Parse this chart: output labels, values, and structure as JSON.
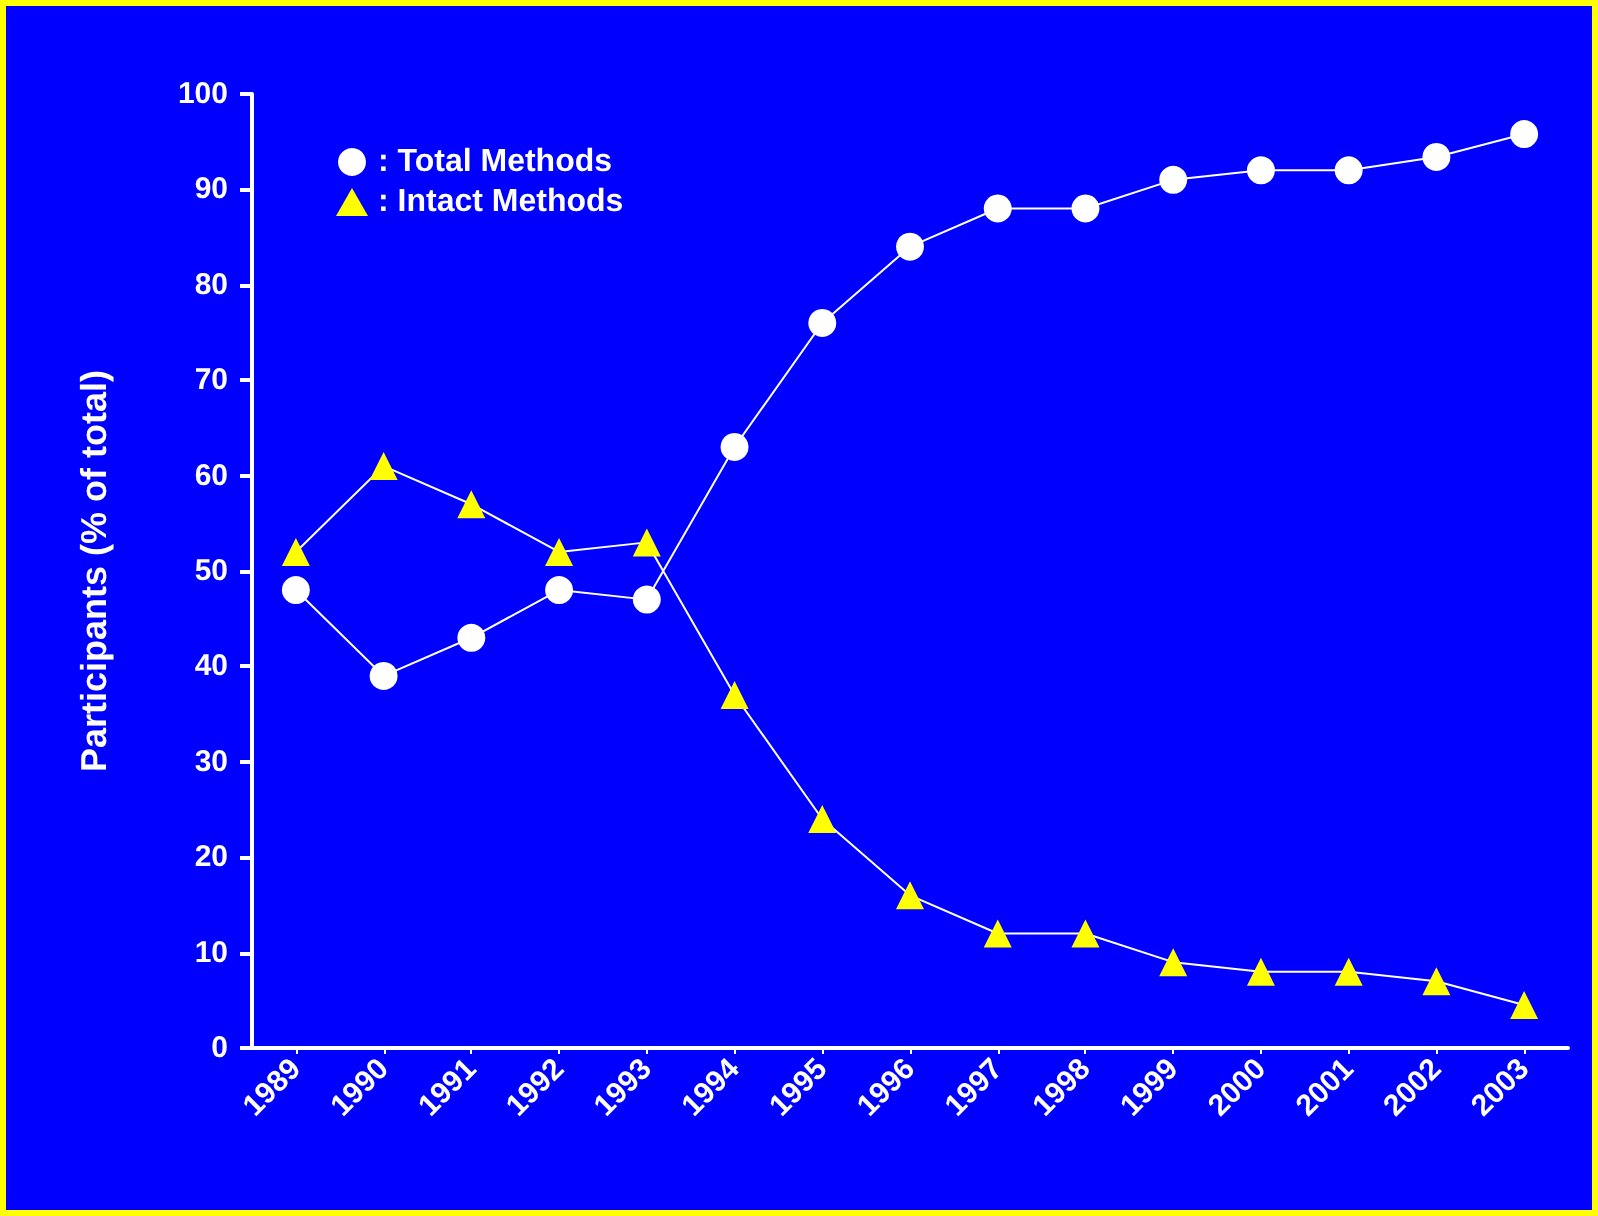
{
  "chart_data": {
    "type": "line",
    "ylabel": "Participants (% of total)",
    "categories": [
      "1989",
      "1990",
      "1991",
      "1992",
      "1993",
      "1994",
      "1995",
      "1996",
      "1997",
      "1998",
      "1999",
      "2000",
      "2001",
      "2002",
      "2003"
    ],
    "series": [
      {
        "name": ": Total Methods",
        "color": "#ffffff",
        "marker": "circle",
        "values": [
          48,
          39,
          43,
          48,
          47,
          63,
          76,
          84,
          88,
          88,
          91,
          92,
          92,
          93.4,
          95.8
        ]
      },
      {
        "name": ": Intact Methods",
        "color": "#ffff00",
        "marker": "triangle",
        "values": [
          52,
          61,
          57,
          52,
          53,
          37,
          24,
          16,
          12,
          12,
          9,
          8,
          8,
          7,
          4.5
        ]
      }
    ],
    "ylim": [
      0,
      100
    ],
    "yticks": [
      0,
      10,
      20,
      30,
      40,
      50,
      60,
      70,
      80,
      90,
      100
    ],
    "grid": false,
    "legend": "top left",
    "line_style": "solid"
  }
}
